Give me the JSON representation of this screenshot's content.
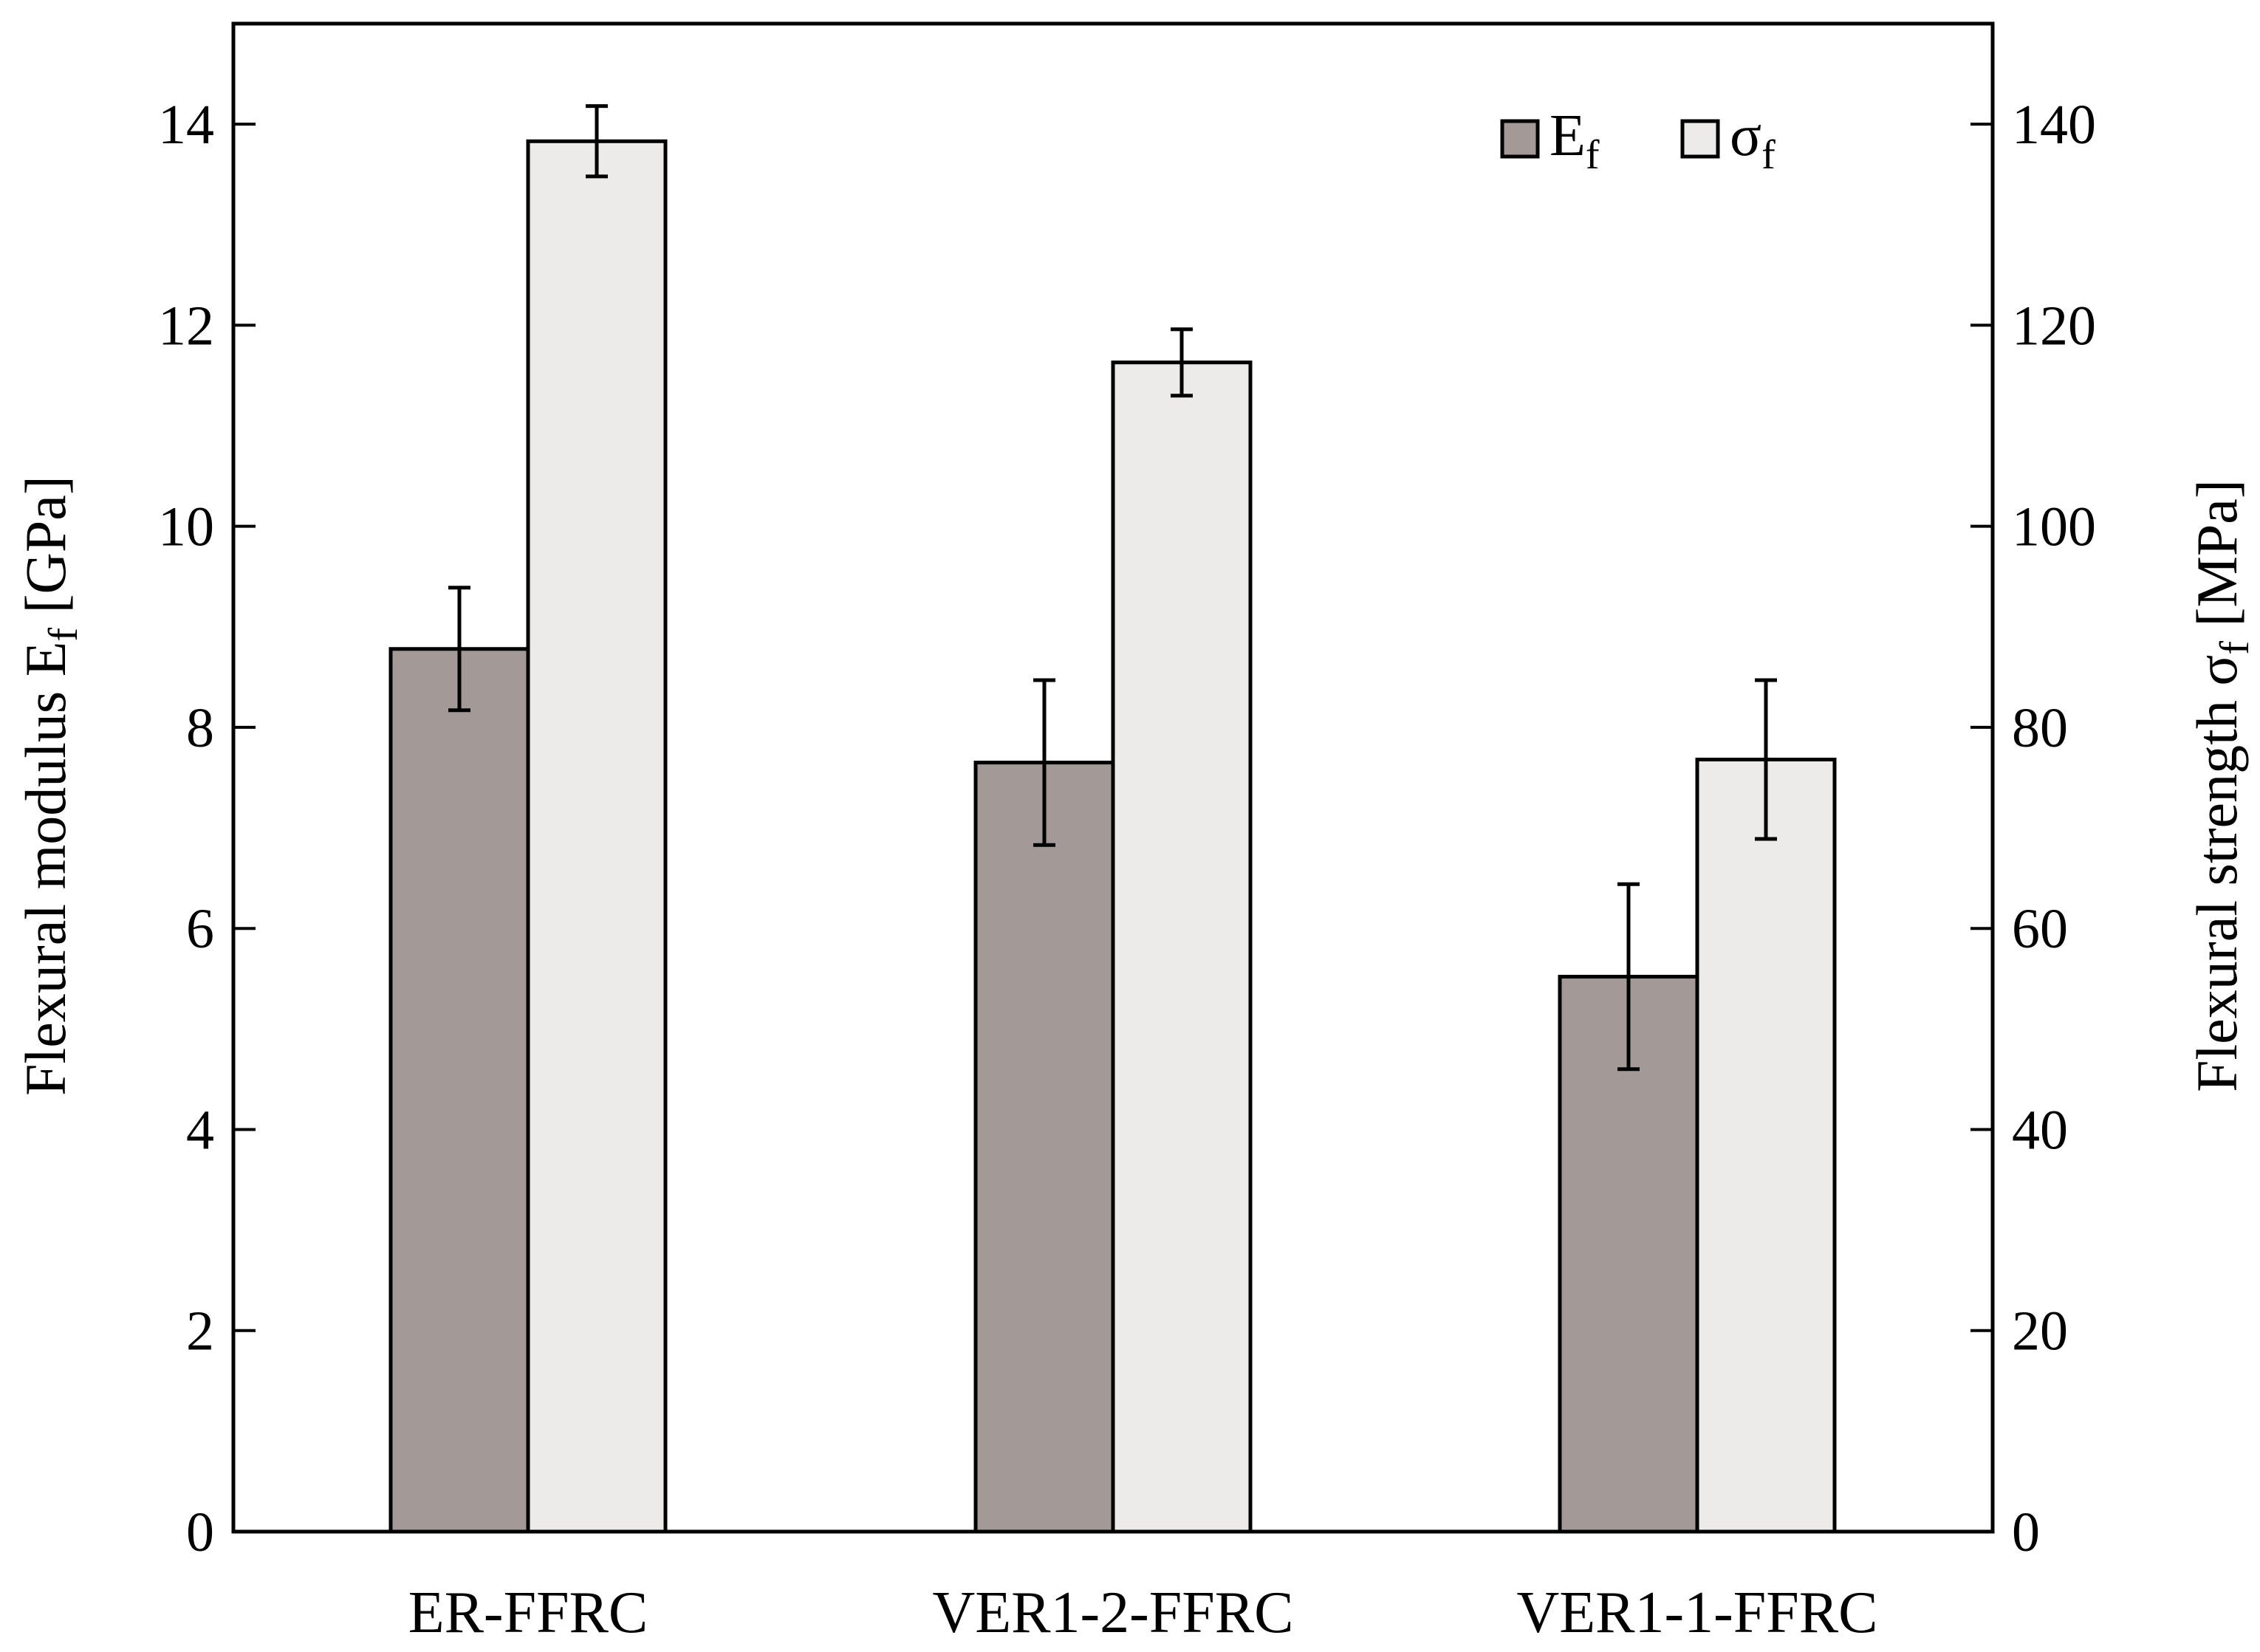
{
  "chart_data": {
    "type": "bar",
    "title": "",
    "categories": [
      "ER-FFRC",
      "VER1-2-FFRC",
      "VER1-1-FFRC"
    ],
    "series": [
      {
        "name": "E",
        "subscript": "f",
        "axis": "left",
        "color": "#a39a98",
        "values": [
          8.78,
          7.65,
          5.52
        ],
        "error": [
          0.61,
          0.82,
          0.92
        ]
      },
      {
        "name": "σ",
        "subscript": "f",
        "axis": "right",
        "color": "#ecebea",
        "values": [
          138.3,
          116.3,
          76.8
        ],
        "error": [
          3.5,
          3.3,
          7.9
        ]
      }
    ],
    "left_axis": {
      "label": "Flexural modulus E",
      "label_sub": "f",
      "label_suffix": " [GPa]",
      "ylim": [
        0,
        15
      ],
      "ticks": [
        "0",
        "2",
        "4",
        "6",
        "8",
        "10",
        "12",
        "14"
      ]
    },
    "right_axis": {
      "label": "Flexural strength σ",
      "label_sub": "f",
      "label_suffix": " [MPa]",
      "ylim": [
        0,
        150
      ],
      "ticks": [
        "0",
        "20",
        "40",
        "60",
        "80",
        "100",
        "120",
        "140"
      ]
    },
    "legend_position": "top-right",
    "grid": false
  }
}
